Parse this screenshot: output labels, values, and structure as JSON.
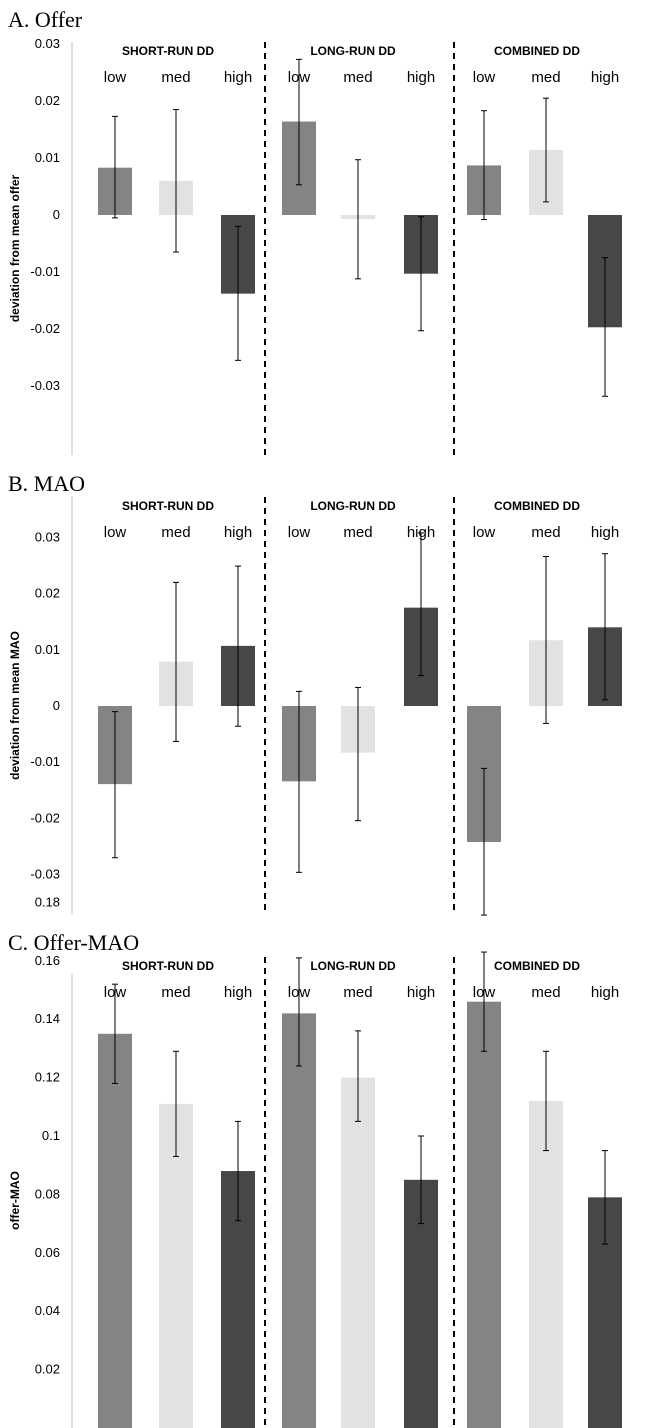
{
  "colors": {
    "low": "#848484",
    "med": "#e2e2e2",
    "high": "#474747",
    "axis": "#bfbfbf",
    "error": "#000000"
  },
  "chart_data": [
    {
      "type": "bar",
      "title": "A. Offer",
      "ylabel": "deviation from mean offer",
      "ylim": [
        -0.04,
        0.035
      ],
      "yticks": [
        "0.03",
        "0.02",
        "0.01",
        "0",
        "-0.01",
        "-0.02",
        "-0.03"
      ],
      "groups": [
        "SHORT-RUN DD",
        "LONG-RUN DD",
        "COMBINED DD"
      ],
      "categories": [
        "low",
        "med",
        "high"
      ],
      "values": [
        [
          0.0083,
          0.006,
          -0.0138
        ],
        [
          0.0164,
          -0.0007,
          -0.0103
        ],
        [
          0.0087,
          0.0114,
          -0.0197
        ]
      ],
      "error_low": [
        [
          -0.0005,
          -0.0065,
          -0.0255
        ],
        [
          0.0053,
          -0.0112,
          -0.0203
        ],
        [
          -0.0008,
          0.0023,
          -0.0318
        ]
      ],
      "error_high": [
        [
          0.0173,
          0.0185,
          -0.002
        ],
        [
          0.0273,
          0.0097,
          -0.0003
        ],
        [
          0.0183,
          0.0205,
          -0.0075
        ]
      ]
    },
    {
      "type": "bar",
      "title": "B. MAO",
      "ylabel": "deviation from mean MAO",
      "ylim": [
        -0.038,
        0.037
      ],
      "yticks": [
        "0.03",
        "0.02",
        "0.01",
        "0",
        "-0.01",
        "-0.02",
        "-0.03"
      ],
      "groups": [
        "SHORT-RUN DD",
        "LONG-RUN DD",
        "COMBINED DD"
      ],
      "categories": [
        "low",
        "med",
        "high"
      ],
      "values": [
        [
          -0.0139,
          0.0079,
          0.0107
        ],
        [
          -0.0134,
          -0.0083,
          0.0175
        ],
        [
          -0.0242,
          0.0117,
          0.014
        ]
      ],
      "error_low": [
        [
          -0.027,
          -0.0063,
          -0.0036
        ],
        [
          -0.0296,
          -0.0204,
          0.0054
        ],
        [
          -0.0372,
          -0.0031,
          0.0011
        ]
      ],
      "error_high": [
        [
          -0.001,
          0.022,
          0.0249
        ],
        [
          0.0026,
          0.0033,
          0.0308
        ],
        [
          -0.0111,
          0.0266,
          0.0271
        ]
      ]
    },
    {
      "type": "bar",
      "title": "C. Offer-MAO",
      "ylabel": "offer-MAO",
      "ylim": [
        0,
        0.18
      ],
      "yticks": [
        "0.18",
        "0.16",
        "0.14",
        "0.12",
        "0.1",
        "0.08",
        "0.06",
        "0.04",
        "0.02"
      ],
      "groups": [
        "SHORT-RUN DD",
        "LONG-RUN DD",
        "COMBINED DD"
      ],
      "categories": [
        "low",
        "med",
        "high"
      ],
      "values": [
        [
          0.135,
          0.111,
          0.088
        ],
        [
          0.142,
          0.12,
          0.085
        ],
        [
          0.146,
          0.112,
          0.079
        ]
      ],
      "error_low": [
        [
          0.118,
          0.093,
          0.071
        ],
        [
          0.124,
          0.105,
          0.07
        ],
        [
          0.129,
          0.095,
          0.063
        ]
      ],
      "error_high": [
        [
          0.152,
          0.129,
          0.105
        ],
        [
          0.161,
          0.136,
          0.1
        ],
        [
          0.163,
          0.129,
          0.095
        ]
      ]
    }
  ]
}
